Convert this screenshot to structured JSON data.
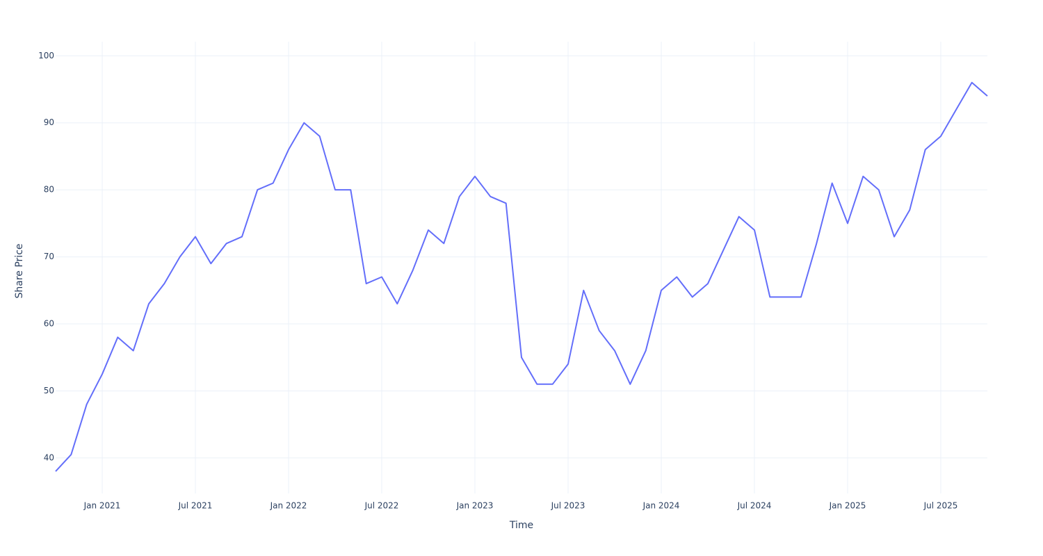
{
  "chart_data": {
    "type": "line",
    "x_label": "Time",
    "y_label": "Share Price",
    "x": [
      "2020-10",
      "2020-11",
      "2020-12",
      "2021-01",
      "2021-02",
      "2021-03",
      "2021-04",
      "2021-05",
      "2021-06",
      "2021-07",
      "2021-08",
      "2021-09",
      "2021-10",
      "2021-11",
      "2021-12",
      "2022-01",
      "2022-02",
      "2022-03",
      "2022-04",
      "2022-05",
      "2022-06",
      "2022-07",
      "2022-08",
      "2022-09",
      "2022-10",
      "2022-11",
      "2022-12",
      "2023-01",
      "2023-02",
      "2023-03",
      "2023-04",
      "2023-05",
      "2023-06",
      "2023-07",
      "2023-08",
      "2023-09",
      "2023-10",
      "2023-11",
      "2023-12",
      "2024-01",
      "2024-02",
      "2024-03",
      "2024-04",
      "2024-05",
      "2024-06",
      "2024-07",
      "2024-08",
      "2024-09",
      "2024-10",
      "2024-11",
      "2024-12",
      "2025-01",
      "2025-02",
      "2025-03",
      "2025-04",
      "2025-05",
      "2025-06",
      "2025-07",
      "2025-08",
      "2025-09",
      "2025-10"
    ],
    "series": [
      {
        "name": "Share Price",
        "color": "#636efa",
        "values": [
          38,
          40.5,
          48,
          52.5,
          58,
          56,
          63,
          66,
          70,
          73,
          69,
          72,
          73,
          80,
          81,
          86,
          90,
          88,
          80,
          80,
          66,
          67,
          63,
          68,
          74,
          72,
          79,
          82,
          79,
          78,
          55,
          51,
          51,
          54,
          65,
          59,
          56,
          51,
          56,
          65,
          67,
          64,
          66,
          71,
          76,
          74,
          64,
          64,
          64,
          72,
          81,
          75,
          82,
          80,
          73,
          77,
          86,
          88,
          92,
          96,
          94
        ]
      }
    ],
    "xlim": [
      "2020-10",
      "2025-10"
    ],
    "xticks": [
      {
        "value": "2021-01",
        "label": "Jan 2021"
      },
      {
        "value": "2021-07",
        "label": "Jul 2021"
      },
      {
        "value": "2022-01",
        "label": "Jan 2022"
      },
      {
        "value": "2022-07",
        "label": "Jul 2022"
      },
      {
        "value": "2023-01",
        "label": "Jan 2023"
      },
      {
        "value": "2023-07",
        "label": "Jul 2023"
      },
      {
        "value": "2024-01",
        "label": "Jan 2024"
      },
      {
        "value": "2024-07",
        "label": "Jul 2024"
      },
      {
        "value": "2025-01",
        "label": "Jan 2025"
      },
      {
        "value": "2025-07",
        "label": "Jul 2025"
      }
    ],
    "ylim": [
      34.7,
      102.1
    ],
    "yticks": [
      40,
      50,
      60,
      70,
      80,
      90,
      100
    ],
    "grid": true
  }
}
